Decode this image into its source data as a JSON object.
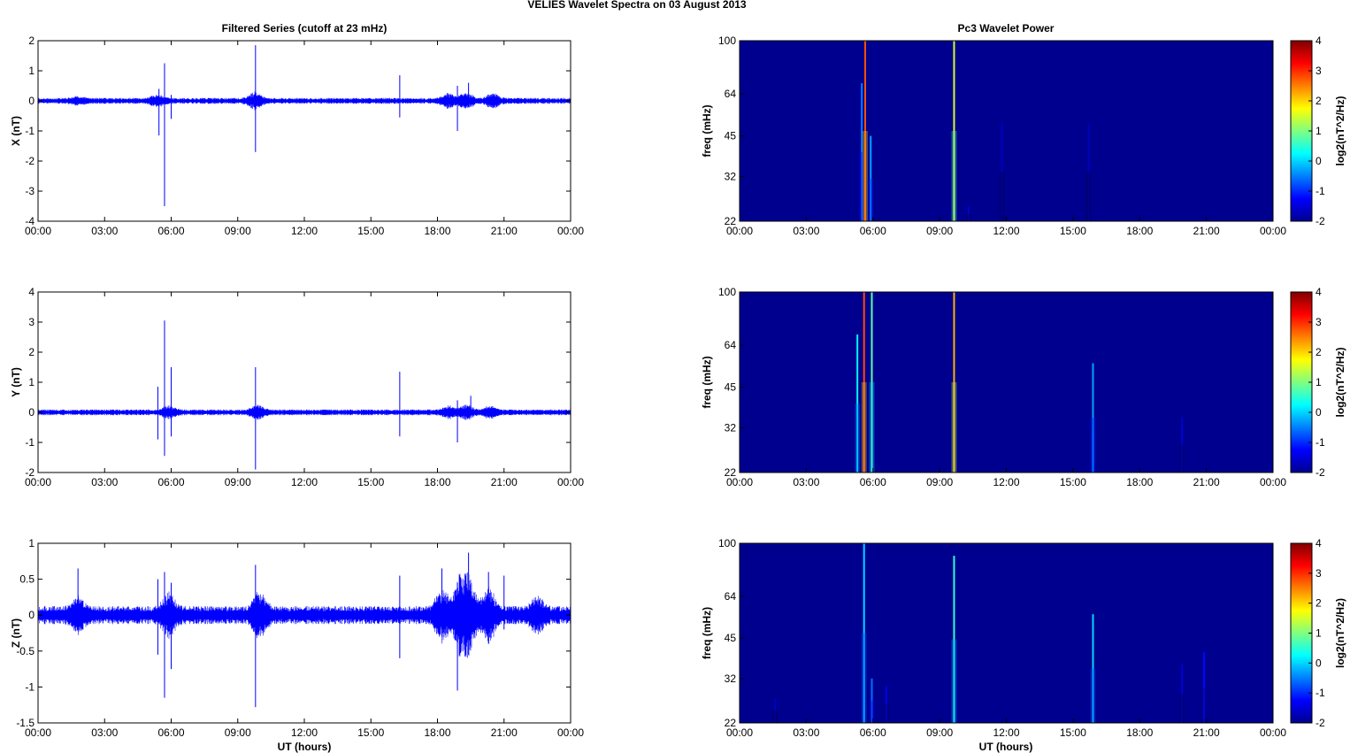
{
  "figure": {
    "suptitle": "VELIES Wavelet Spectra on 03 August    2013",
    "left_title": "Filtered Series (cutoff at 23 mHz)",
    "right_title": "Pc3 Wavelet Power",
    "xlabel": "UT (hours)",
    "colors": {
      "signal": "#0000ff",
      "background_field": "#00008f"
    }
  },
  "chart_data": [
    {
      "type": "line",
      "panel": "X",
      "ylabel": "X (nT)",
      "ylim": [
        -4,
        2
      ],
      "yticks": [
        2,
        1,
        0,
        -1,
        -2,
        -3,
        -4
      ],
      "x_ticks": [
        "00:00",
        "03:00",
        "06:00",
        "09:00",
        "12:00",
        "15:00",
        "18:00",
        "21:00",
        "00:00"
      ],
      "xlim_hours": [
        0,
        24
      ],
      "noise_amp": 0.07,
      "activity": [
        [
          1.8,
          0.05
        ],
        [
          5.4,
          0.1
        ],
        [
          9.8,
          0.15
        ],
        [
          18.5,
          0.12
        ],
        [
          19.3,
          0.14
        ],
        [
          20.5,
          0.12
        ]
      ],
      "spikes": [
        {
          "t": 5.45,
          "max": 0.4,
          "min": -1.15
        },
        {
          "t": 5.7,
          "max": 1.25,
          "min": -3.5
        },
        {
          "t": 6.0,
          "max": 0.2,
          "min": -0.6
        },
        {
          "t": 9.8,
          "max": 1.85,
          "min": -1.7
        },
        {
          "t": 16.3,
          "max": 0.85,
          "min": -0.55
        },
        {
          "t": 18.9,
          "max": 0.5,
          "min": -1.0
        },
        {
          "t": 19.4,
          "max": 0.6,
          "min": -0.2
        }
      ]
    },
    {
      "type": "line",
      "panel": "Y",
      "ylabel": "Y (nT)",
      "ylim": [
        -2,
        4
      ],
      "yticks": [
        4,
        3,
        2,
        1,
        0,
        -1,
        -2
      ],
      "x_ticks": [
        "00:00",
        "03:00",
        "06:00",
        "09:00",
        "12:00",
        "15:00",
        "18:00",
        "21:00",
        "00:00"
      ],
      "xlim_hours": [
        0,
        24
      ],
      "noise_amp": 0.07,
      "activity": [
        [
          5.9,
          0.1
        ],
        [
          9.9,
          0.12
        ],
        [
          18.5,
          0.1
        ],
        [
          19.3,
          0.12
        ],
        [
          20.4,
          0.1
        ]
      ],
      "spikes": [
        {
          "t": 5.4,
          "max": 0.85,
          "min": -0.9
        },
        {
          "t": 5.7,
          "max": 3.05,
          "min": -1.45
        },
        {
          "t": 6.0,
          "max": 1.5,
          "min": -0.8
        },
        {
          "t": 9.8,
          "max": 1.5,
          "min": -1.9
        },
        {
          "t": 16.3,
          "max": 1.35,
          "min": -0.8
        },
        {
          "t": 18.9,
          "max": 0.4,
          "min": -1.0
        },
        {
          "t": 19.5,
          "max": 0.55,
          "min": -0.1
        }
      ]
    },
    {
      "type": "line",
      "panel": "Z",
      "ylabel": "Z (nT)",
      "ylim": [
        -1.5,
        1
      ],
      "yticks": [
        1,
        0.5,
        0,
        -0.5,
        -1,
        -1.5
      ],
      "x_ticks": [
        "00:00",
        "03:00",
        "06:00",
        "09:00",
        "12:00",
        "15:00",
        "18:00",
        "21:00",
        "00:00"
      ],
      "xlim_hours": [
        0,
        24
      ],
      "noise_amp": 0.09,
      "activity": [
        [
          1.8,
          0.12
        ],
        [
          5.9,
          0.14
        ],
        [
          10.0,
          0.18
        ],
        [
          18.2,
          0.2
        ],
        [
          19.0,
          0.25
        ],
        [
          19.4,
          0.3
        ],
        [
          20.3,
          0.22
        ],
        [
          22.5,
          0.12
        ]
      ],
      "spikes": [
        {
          "t": 1.8,
          "max": 0.65,
          "min": -0.2
        },
        {
          "t": 5.4,
          "max": 0.5,
          "min": -0.55
        },
        {
          "t": 5.7,
          "max": 0.6,
          "min": -1.15
        },
        {
          "t": 6.0,
          "max": 0.45,
          "min": -0.75
        },
        {
          "t": 9.8,
          "max": 0.7,
          "min": -1.28
        },
        {
          "t": 16.3,
          "max": 0.55,
          "min": -0.6
        },
        {
          "t": 18.2,
          "max": 0.65,
          "min": -0.3
        },
        {
          "t": 18.9,
          "max": 0.45,
          "min": -1.05
        },
        {
          "t": 19.4,
          "max": 0.87,
          "min": -0.55
        },
        {
          "t": 20.3,
          "max": 0.6,
          "min": -0.4
        },
        {
          "t": 21.0,
          "max": 0.55,
          "min": -0.2
        }
      ]
    },
    {
      "type": "heatmap",
      "panel": "X",
      "ylabel": "freq (mHz)",
      "yscale": "log",
      "ylim": [
        22,
        100
      ],
      "yticks": [
        100,
        64,
        45,
        32,
        22
      ],
      "x_ticks": [
        "00:00",
        "03:00",
        "06:00",
        "09:00",
        "12:00",
        "15:00",
        "18:00",
        "21:00",
        "00:00"
      ],
      "xlim_hours": [
        0,
        24
      ],
      "colorbar": {
        "label": "log2(nT^2/Hz)",
        "range": [
          -2,
          4
        ],
        "ticks": [
          4,
          3,
          2,
          1,
          0,
          -1,
          -2
        ]
      },
      "background": -2,
      "streaks": [
        {
          "t": 5.5,
          "power": -0.5,
          "top": 70,
          "w": 0.06
        },
        {
          "t": 5.65,
          "power": 2.8,
          "top": 100,
          "w": 0.05
        },
        {
          "t": 5.9,
          "power": -0.3,
          "top": 45,
          "w": 0.05
        },
        {
          "t": 9.65,
          "power": 1.5,
          "top": 100,
          "w": 0.06
        },
        {
          "t": 10.3,
          "power": -1.5,
          "top": 25,
          "w": 0.04
        },
        {
          "t": 11.8,
          "power": -1.6,
          "top": 50,
          "w": 0.04
        },
        {
          "t": 15.7,
          "power": -1.6,
          "top": 50,
          "w": 0.04
        }
      ]
    },
    {
      "type": "heatmap",
      "panel": "Y",
      "ylabel": "freq (mHz)",
      "yscale": "log",
      "ylim": [
        22,
        100
      ],
      "yticks": [
        100,
        64,
        45,
        32,
        22
      ],
      "x_ticks": [
        "00:00",
        "03:00",
        "06:00",
        "09:00",
        "12:00",
        "15:00",
        "18:00",
        "21:00",
        "00:00"
      ],
      "xlim_hours": [
        0,
        24
      ],
      "colorbar": {
        "label": "log2(nT^2/Hz)",
        "range": [
          -2,
          4
        ],
        "ticks": [
          4,
          3,
          2,
          1,
          0,
          -1,
          -2
        ]
      },
      "background": -2,
      "streaks": [
        {
          "t": 5.3,
          "power": 0.2,
          "top": 70,
          "w": 0.06
        },
        {
          "t": 5.6,
          "power": 2.8,
          "top": 100,
          "w": 0.06
        },
        {
          "t": 5.95,
          "power": 0.8,
          "top": 100,
          "w": 0.05
        },
        {
          "t": 9.65,
          "power": 2.2,
          "top": 100,
          "w": 0.07
        },
        {
          "t": 15.9,
          "power": -0.3,
          "top": 55,
          "w": 0.05
        },
        {
          "t": 19.9,
          "power": -1.5,
          "top": 35,
          "w": 0.04
        }
      ]
    },
    {
      "type": "heatmap",
      "panel": "Z",
      "ylabel": "freq (mHz)",
      "yscale": "log",
      "ylim": [
        22,
        100
      ],
      "yticks": [
        100,
        64,
        45,
        32,
        22
      ],
      "x_ticks": [
        "00:00",
        "03:00",
        "06:00",
        "09:00",
        "12:00",
        "15:00",
        "18:00",
        "21:00",
        "00:00"
      ],
      "xlim_hours": [
        0,
        24
      ],
      "colorbar": {
        "label": "log2(nT^2/Hz)",
        "range": [
          -2,
          4
        ],
        "ticks": [
          4,
          3,
          2,
          1,
          0,
          -1,
          -2
        ]
      },
      "background": -2,
      "streaks": [
        {
          "t": 1.6,
          "power": -1.6,
          "top": 27,
          "w": 0.04
        },
        {
          "t": 5.6,
          "power": 0.0,
          "top": 100,
          "w": 0.06
        },
        {
          "t": 5.95,
          "power": -0.6,
          "top": 32,
          "w": 0.05
        },
        {
          "t": 6.6,
          "power": -1.4,
          "top": 30,
          "w": 0.04
        },
        {
          "t": 9.65,
          "power": 0.5,
          "top": 90,
          "w": 0.06
        },
        {
          "t": 15.9,
          "power": 0.0,
          "top": 55,
          "w": 0.05
        },
        {
          "t": 19.9,
          "power": -1.5,
          "top": 36,
          "w": 0.04
        },
        {
          "t": 20.9,
          "power": -1.2,
          "top": 40,
          "w": 0.04
        }
      ]
    }
  ]
}
